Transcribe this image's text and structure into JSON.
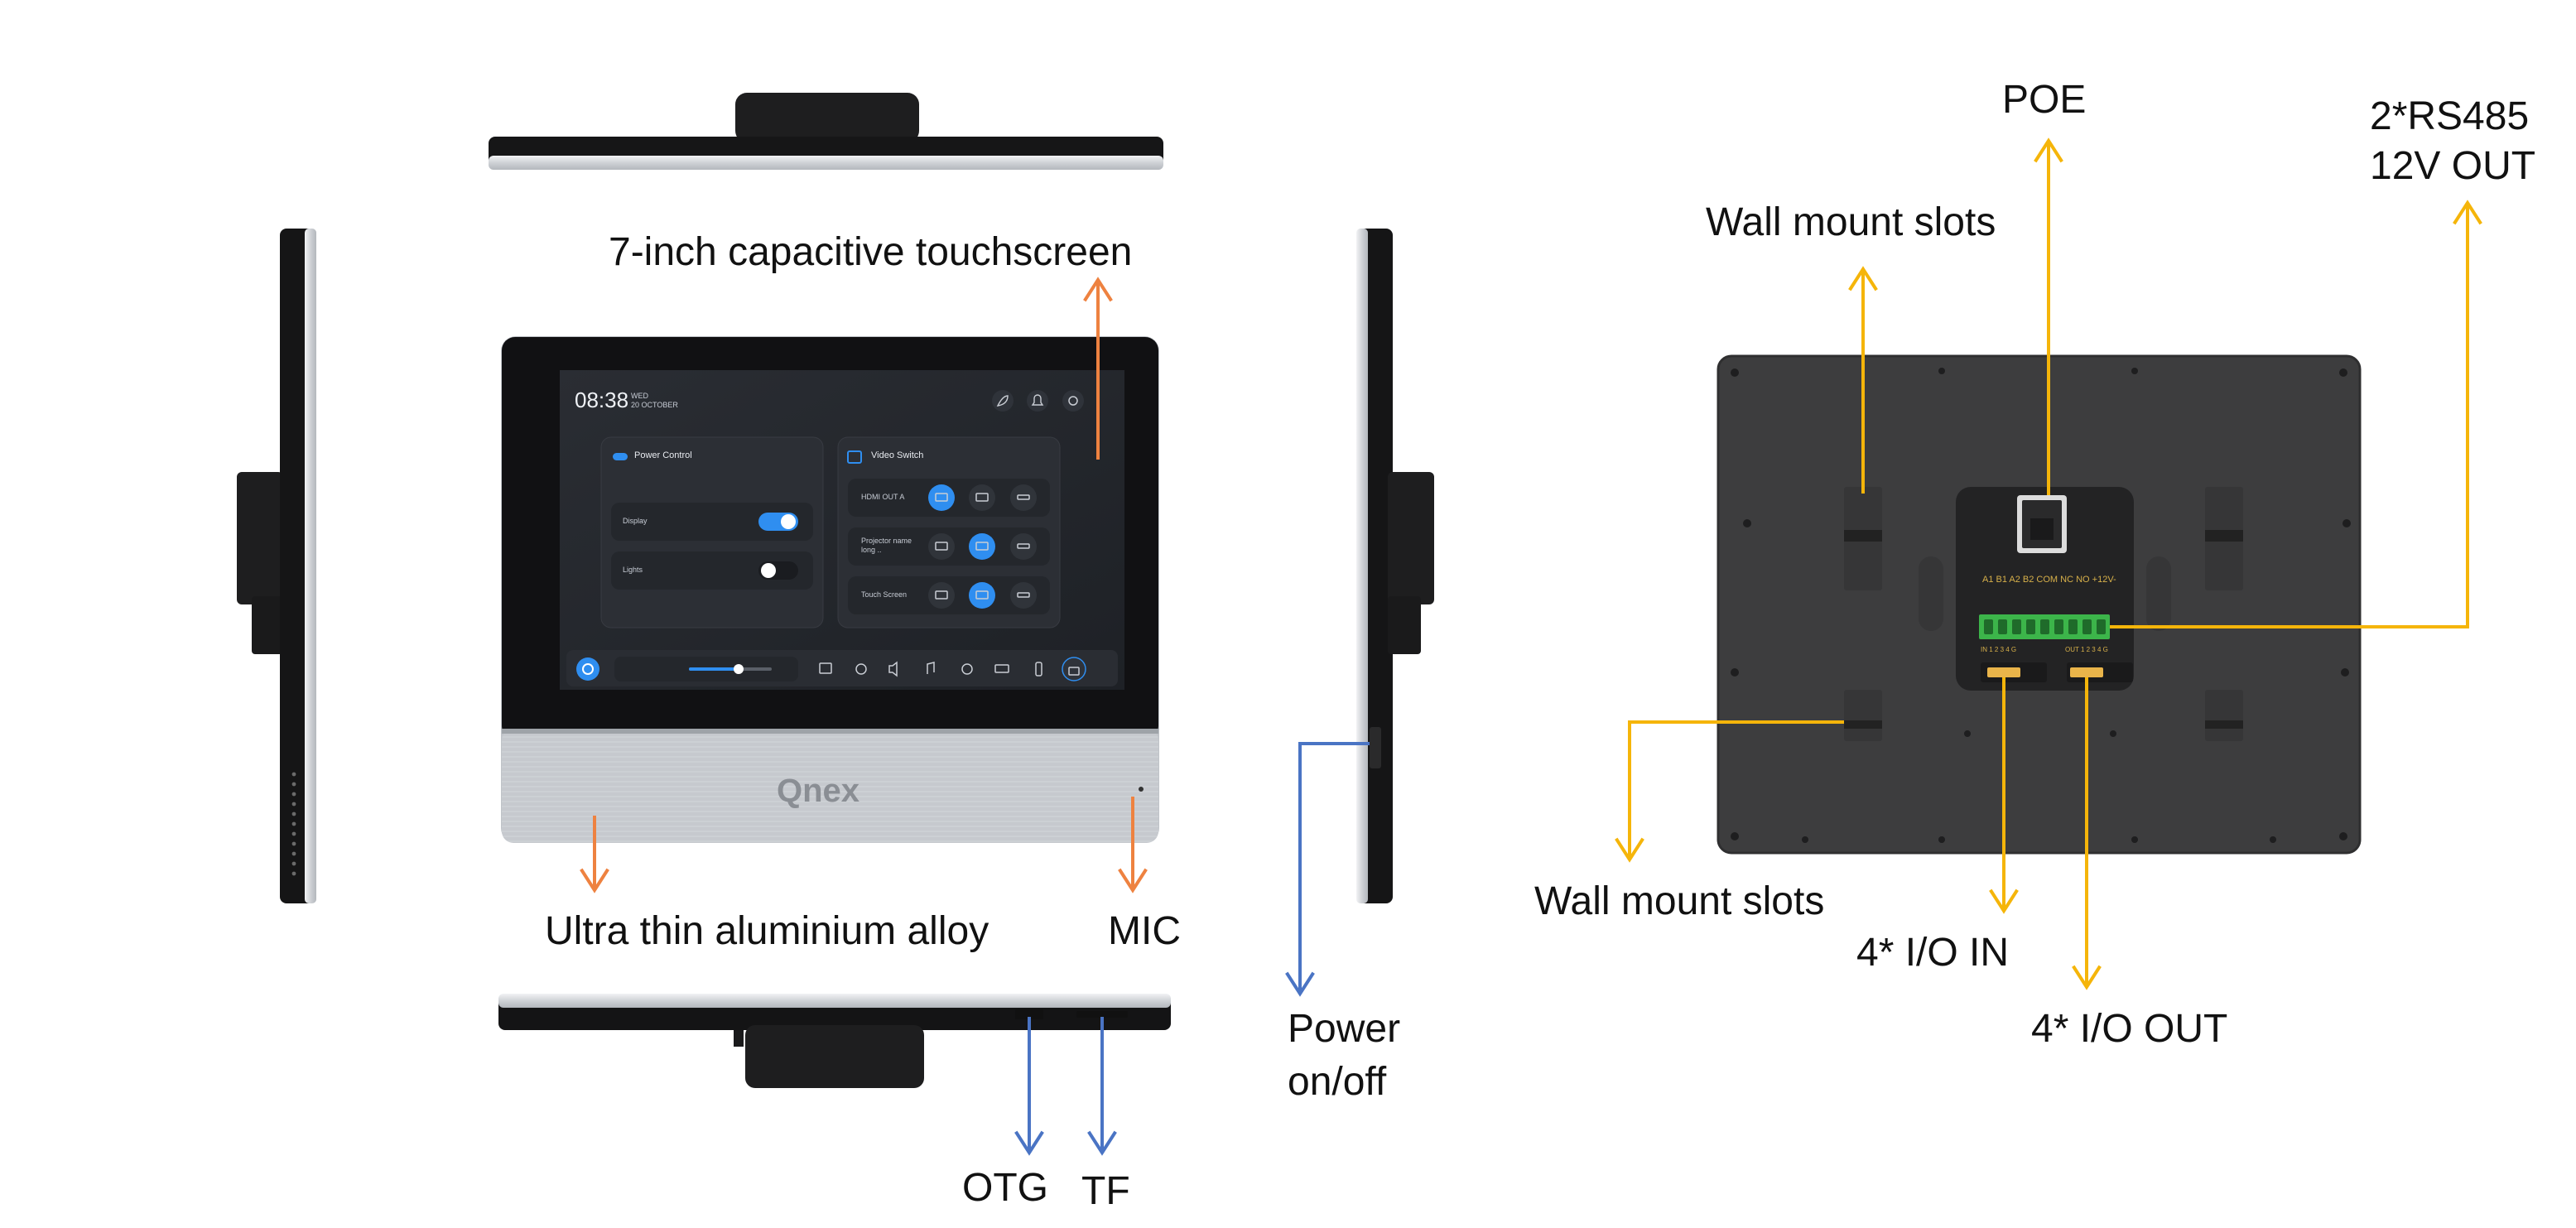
{
  "callouts": {
    "touchscreen": "7-inch capacitive touchscreen",
    "aluminium": "Ultra thin aluminium alloy",
    "mic": "MIC",
    "power_l1": "Power",
    "power_l2": "on/off",
    "otg": "OTG",
    "tf": "TF",
    "poe": "POE",
    "rs485_l1": "2*RS485",
    "rs485_l2": "12V OUT",
    "wall_mount_top": "Wall mount slots",
    "wall_mount_bottom": "Wall mount slots",
    "io_in": "4* I/O IN",
    "io_out": "4* I/O OUT"
  },
  "brand": {
    "logo": "Qnex"
  },
  "screen": {
    "time": "08:38",
    "day": "WED",
    "date": "20 OCTOBER",
    "power_panel": {
      "title": "Power Control",
      "rows": [
        {
          "label": "Display",
          "state": "on"
        },
        {
          "label": "Lights",
          "state": "off"
        }
      ]
    },
    "video_panel": {
      "title": "Video Switch",
      "rows": [
        {
          "label": "HDMI OUT A",
          "selected": 0
        },
        {
          "label": "Projector name",
          "label2": "long ..",
          "selected": 1
        },
        {
          "label": "Touch Screen",
          "selected": 1
        }
      ]
    },
    "volume_level": 0.6
  },
  "back": {
    "terminal_label": "A1 B1 A2 B2 COM NC NO +12V-",
    "in_label": "IN 1 2 3 4 G",
    "out_label": "OUT 1 2 3 4 G"
  },
  "colors": {
    "orange_arrow": "#ee8240",
    "blue_arrow": "#4a74c4",
    "yellow_arrow": "#f5b50a",
    "accent_blue": "#2f8ef0",
    "back_panel": "#3d3d3e",
    "terminal_green": "#3cb54a"
  }
}
